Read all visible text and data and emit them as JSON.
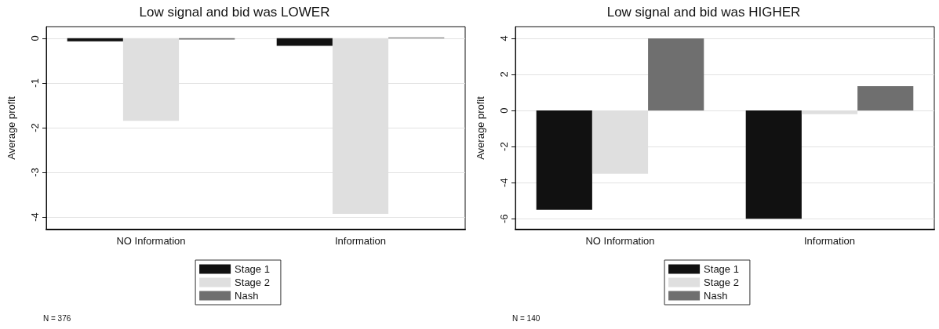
{
  "chart_data": [
    {
      "type": "bar",
      "title": "Low signal and bid was LOWER",
      "ylabel": "Average profit",
      "categories": [
        "NO Information",
        "Information"
      ],
      "series": [
        {
          "name": "Stage 1",
          "color": "#111111",
          "values": [
            -0.07,
            -0.17
          ]
        },
        {
          "name": "Stage 2",
          "color": "#dfdfdf",
          "values": [
            -1.85,
            -3.93
          ]
        },
        {
          "name": "Nash",
          "color": "#6f6f6f",
          "values": [
            -0.03,
            0.02
          ]
        }
      ],
      "ylim": [
        -4.28,
        0.26
      ],
      "yticks": [
        0,
        -1,
        -2,
        -3,
        -4
      ],
      "grid": "y",
      "legend": "bottom",
      "annotations": [
        "N = 376"
      ]
    },
    {
      "type": "bar",
      "title": "Low signal and bid was HIGHER",
      "ylabel": "Average profit",
      "categories": [
        "NO Information",
        "Information"
      ],
      "series": [
        {
          "name": "Stage 1",
          "color": "#111111",
          "values": [
            -5.5,
            -6.0
          ]
        },
        {
          "name": "Stage 2",
          "color": "#dfdfdf",
          "values": [
            -3.5,
            -0.2
          ]
        },
        {
          "name": "Nash",
          "color": "#6f6f6f",
          "values": [
            4.0,
            1.35
          ]
        }
      ],
      "ylim": [
        -6.6,
        4.65
      ],
      "yticks": [
        -6,
        -4,
        -2,
        0,
        2,
        4
      ],
      "grid": "y",
      "legend": "bottom",
      "annotations": [
        "N = 140"
      ]
    }
  ]
}
